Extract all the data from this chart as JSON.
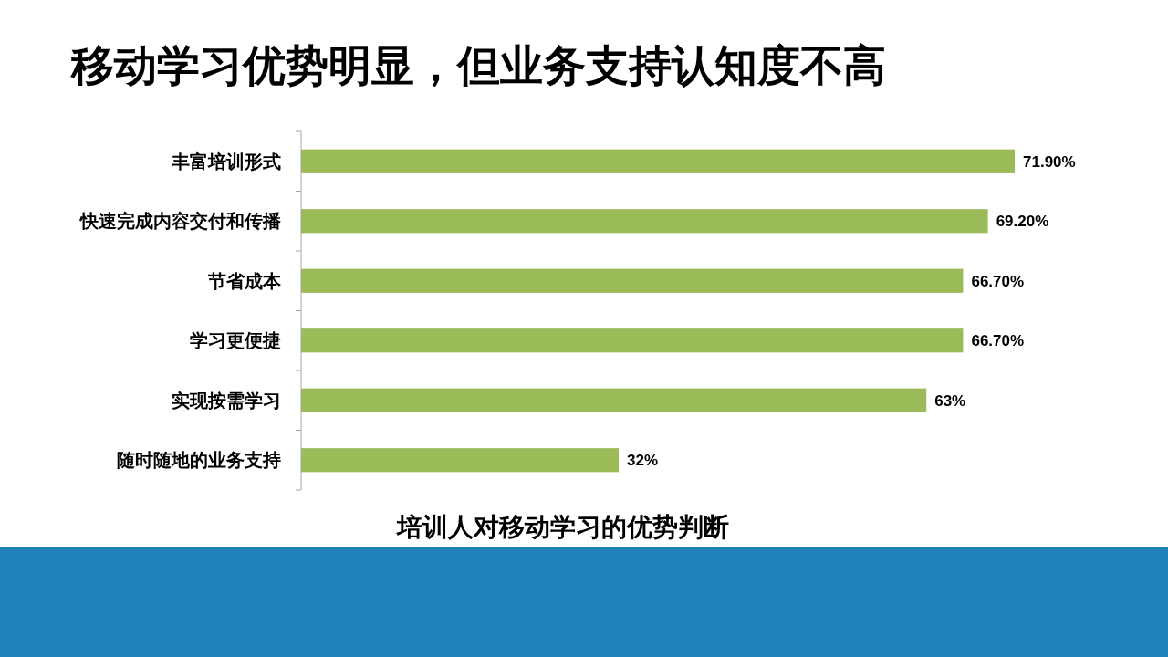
{
  "chart_data": {
    "type": "bar",
    "orientation": "horizontal",
    "title": "移动学习优势明显，但业务支持认知度不高",
    "xlabel": "培训人对移动学习的优势判断",
    "categories": [
      "丰富培训形式",
      "快速完成内容交付和传播",
      "节省成本",
      "学习更便捷",
      "实现按需学习",
      "随时随地的业务支持"
    ],
    "values": [
      71.9,
      69.2,
      66.7,
      66.7,
      63,
      32
    ],
    "value_labels": [
      "71.90%",
      "69.20%",
      "66.70%",
      "66.70%",
      "63%",
      "32%"
    ],
    "color": "#9bbb59"
  }
}
